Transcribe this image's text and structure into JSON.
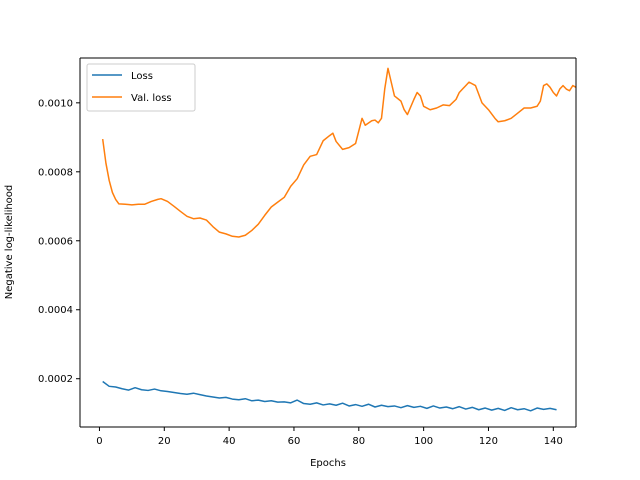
{
  "chart_data": {
    "type": "line",
    "title": "",
    "xlabel": "Epochs",
    "ylabel": "Negative log-likelihood",
    "xlim": [
      -6,
      147
    ],
    "ylim": [
      6e-05,
      0.00113
    ],
    "xticks": [
      0,
      20,
      40,
      60,
      80,
      100,
      120,
      140
    ],
    "xtick_labels": [
      "0",
      "20",
      "40",
      "60",
      "80",
      "100",
      "120",
      "140"
    ],
    "yticks": [
      0.0002,
      0.0004,
      0.0006,
      0.0008,
      0.001
    ],
    "ytick_labels": [
      "0.0002",
      "0.0004",
      "0.0006",
      "0.0008",
      "0.0010"
    ],
    "grid": false,
    "legend_position": "top-left",
    "series": [
      {
        "name": "Loss",
        "color": "#1f77b4",
        "points": [
          [
            1,
            0.000192
          ],
          [
            3,
            0.000178
          ],
          [
            5,
            0.000176
          ],
          [
            7,
            0.000171
          ],
          [
            9,
            0.000167
          ],
          [
            11,
            0.000174
          ],
          [
            13,
            0.000168
          ],
          [
            15,
            0.000166
          ],
          [
            17,
            0.00017
          ],
          [
            19,
            0.000165
          ],
          [
            21,
            0.000163
          ],
          [
            23,
            0.00016
          ],
          [
            25,
            0.000157
          ],
          [
            27,
            0.000155
          ],
          [
            29,
            0.000158
          ],
          [
            31,
            0.000154
          ],
          [
            33,
            0.00015
          ],
          [
            35,
            0.000147
          ],
          [
            37,
            0.000144
          ],
          [
            39,
            0.000146
          ],
          [
            41,
            0.000141
          ],
          [
            43,
            0.000139
          ],
          [
            45,
            0.000142
          ],
          [
            47,
            0.000136
          ],
          [
            49,
            0.000138
          ],
          [
            51,
            0.000134
          ],
          [
            53,
            0.000136
          ],
          [
            55,
            0.000132
          ],
          [
            57,
            0.000133
          ],
          [
            59,
            0.00013
          ],
          [
            61,
            0.000138
          ],
          [
            63,
            0.000128
          ],
          [
            65,
            0.000126
          ],
          [
            67,
            0.00013
          ],
          [
            69,
            0.000124
          ],
          [
            71,
            0.000127
          ],
          [
            73,
            0.000123
          ],
          [
            75,
            0.000129
          ],
          [
            77,
            0.000121
          ],
          [
            79,
            0.000125
          ],
          [
            81,
            0.00012
          ],
          [
            83,
            0.000126
          ],
          [
            85,
            0.000118
          ],
          [
            87,
            0.000123
          ],
          [
            89,
            0.000119
          ],
          [
            91,
            0.000121
          ],
          [
            93,
            0.000116
          ],
          [
            95,
            0.000122
          ],
          [
            97,
            0.000117
          ],
          [
            99,
            0.00012
          ],
          [
            101,
            0.000114
          ],
          [
            103,
            0.000121
          ],
          [
            105,
            0.000115
          ],
          [
            107,
            0.000118
          ],
          [
            109,
            0.000113
          ],
          [
            111,
            0.000119
          ],
          [
            113,
            0.000112
          ],
          [
            115,
            0.000117
          ],
          [
            117,
            0.00011
          ],
          [
            119,
            0.000115
          ],
          [
            121,
            0.000109
          ],
          [
            123,
            0.000114
          ],
          [
            125,
            0.000108
          ],
          [
            127,
            0.000116
          ],
          [
            129,
            0.00011
          ],
          [
            131,
            0.000113
          ],
          [
            133,
            0.000107
          ],
          [
            135,
            0.000115
          ],
          [
            137,
            0.000111
          ],
          [
            139,
            0.000114
          ],
          [
            141,
            0.00011
          ]
        ]
      },
      {
        "name": "Val. loss",
        "color": "#ff7f0e",
        "points": [
          [
            1,
            0.000895
          ],
          [
            2,
            0.000825
          ],
          [
            3,
            0.000775
          ],
          [
            4,
            0.00074
          ],
          [
            5,
            0.00072
          ],
          [
            6,
            0.000707
          ],
          [
            8,
            0.000706
          ],
          [
            10,
            0.000704
          ],
          [
            12,
            0.000706
          ],
          [
            14,
            0.000706
          ],
          [
            16,
            0.000714
          ],
          [
            18,
            0.00072
          ],
          [
            19,
            0.000722
          ],
          [
            21,
            0.000714
          ],
          [
            23,
            0.0007
          ],
          [
            25,
            0.000685
          ],
          [
            27,
            0.000671
          ],
          [
            29,
            0.000664
          ],
          [
            31,
            0.000666
          ],
          [
            33,
            0.00066
          ],
          [
            35,
            0.000641
          ],
          [
            37,
            0.000625
          ],
          [
            39,
            0.00062
          ],
          [
            41,
            0.000613
          ],
          [
            43,
            0.000611
          ],
          [
            45,
            0.000616
          ],
          [
            47,
            0.00063
          ],
          [
            49,
            0.000648
          ],
          [
            51,
            0.000674
          ],
          [
            53,
            0.000698
          ],
          [
            55,
            0.000712
          ],
          [
            57,
            0.000726
          ],
          [
            59,
            0.000758
          ],
          [
            61,
            0.00078
          ],
          [
            63,
            0.00082
          ],
          [
            65,
            0.000845
          ],
          [
            67,
            0.00085
          ],
          [
            69,
            0.00089
          ],
          [
            71,
            0.000905
          ],
          [
            72,
            0.000912
          ],
          [
            73,
            0.000888
          ],
          [
            75,
            0.000865
          ],
          [
            77,
            0.00087
          ],
          [
            79,
            0.000882
          ],
          [
            81,
            0.000955
          ],
          [
            82,
            0.000935
          ],
          [
            84,
            0.000948
          ],
          [
            85,
            0.00095
          ],
          [
            86,
            0.000942
          ],
          [
            87,
            0.000955
          ],
          [
            88,
            0.00104
          ],
          [
            89,
            0.0011
          ],
          [
            90,
            0.00106
          ],
          [
            91,
            0.00102
          ],
          [
            93,
            0.001005
          ],
          [
            94,
            0.00098
          ],
          [
            95,
            0.000966
          ],
          [
            97,
            0.00101
          ],
          [
            98,
            0.00103
          ],
          [
            99,
            0.00102
          ],
          [
            100,
            0.00099
          ],
          [
            102,
            0.00098
          ],
          [
            104,
            0.000985
          ],
          [
            106,
            0.000994
          ],
          [
            108,
            0.000992
          ],
          [
            110,
            0.00101
          ],
          [
            111,
            0.00103
          ],
          [
            112,
            0.00104
          ],
          [
            113,
            0.00105
          ],
          [
            114,
            0.00106
          ],
          [
            116,
            0.00105
          ],
          [
            118,
            0.001
          ],
          [
            120,
            0.00098
          ],
          [
            122,
            0.000955
          ],
          [
            123,
            0.000945
          ],
          [
            125,
            0.000948
          ],
          [
            127,
            0.000955
          ],
          [
            129,
            0.00097
          ],
          [
            131,
            0.000985
          ],
          [
            133,
            0.000985
          ],
          [
            135,
            0.00099
          ],
          [
            136,
            0.001005
          ],
          [
            137,
            0.00105
          ],
          [
            138,
            0.001055
          ],
          [
            139,
            0.001045
          ],
          [
            140,
            0.00103
          ],
          [
            141,
            0.00102
          ],
          [
            142,
            0.00104
          ],
          [
            143,
            0.00105
          ],
          [
            144,
            0.00104
          ],
          [
            145,
            0.001035
          ],
          [
            146,
            0.00105
          ],
          [
            147,
            0.001045
          ]
        ]
      }
    ]
  }
}
